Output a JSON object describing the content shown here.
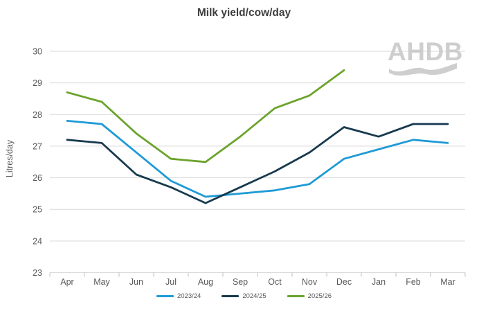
{
  "title": "Milk yield/cow/day",
  "watermark": "AHDB",
  "colors": {
    "title_text": "#3f3f3f",
    "axis_text": "#595959",
    "gridline": "#d9d9d9",
    "tick": "#bfbfbf",
    "watermark": "#c9c9c9",
    "background": "#ffffff"
  },
  "chart_data": {
    "type": "line",
    "title": "Milk yield/cow/day",
    "xlabel": "",
    "ylabel": "Litres/day",
    "ylim": [
      23,
      30
    ],
    "ytick_step": 1,
    "grid": true,
    "legend_position": "bottom",
    "categories": [
      "Apr",
      "May",
      "Jun",
      "Jul",
      "Aug",
      "Sep",
      "Oct",
      "Nov",
      "Dec",
      "Jan",
      "Feb",
      "Mar"
    ],
    "series": [
      {
        "name": "2023/24",
        "color": "#1e9ad6",
        "values": [
          27.8,
          27.7,
          26.8,
          25.9,
          25.4,
          25.5,
          25.6,
          25.8,
          26.6,
          26.9,
          27.2,
          27.1
        ]
      },
      {
        "name": "2024/25",
        "color": "#17394e",
        "values": [
          27.2,
          27.1,
          26.1,
          25.7,
          25.2,
          25.7,
          26.2,
          26.8,
          27.6,
          27.3,
          27.7,
          27.7
        ]
      },
      {
        "name": "2025/26",
        "color": "#6ba32b",
        "values": [
          28.7,
          28.4,
          27.4,
          26.6,
          26.5,
          27.3,
          28.2,
          28.6,
          29.4,
          null,
          null,
          null
        ]
      }
    ]
  }
}
